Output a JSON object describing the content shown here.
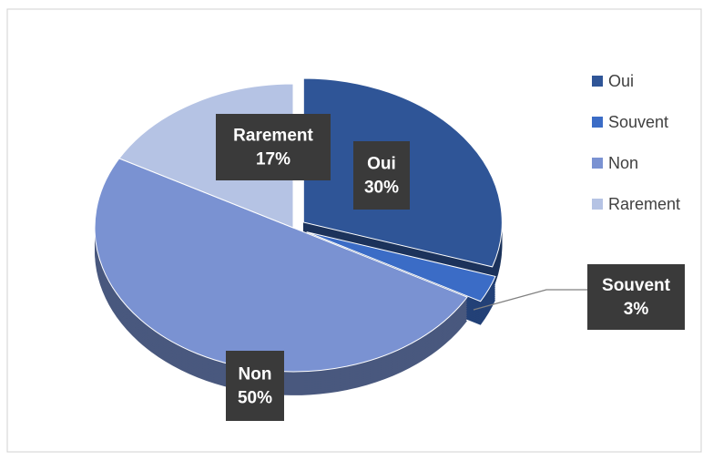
{
  "chart_data": {
    "type": "pie",
    "categories": [
      "Oui",
      "Souvent",
      "Non",
      "Rarement"
    ],
    "values": [
      30,
      3,
      50,
      17
    ],
    "value_labels": [
      "30%",
      "3%",
      "50%",
      "17%"
    ],
    "colors": [
      "#2f5597",
      "#3b6cc6",
      "#7a92d2",
      "#b5c3e4"
    ],
    "legend": "right"
  }
}
